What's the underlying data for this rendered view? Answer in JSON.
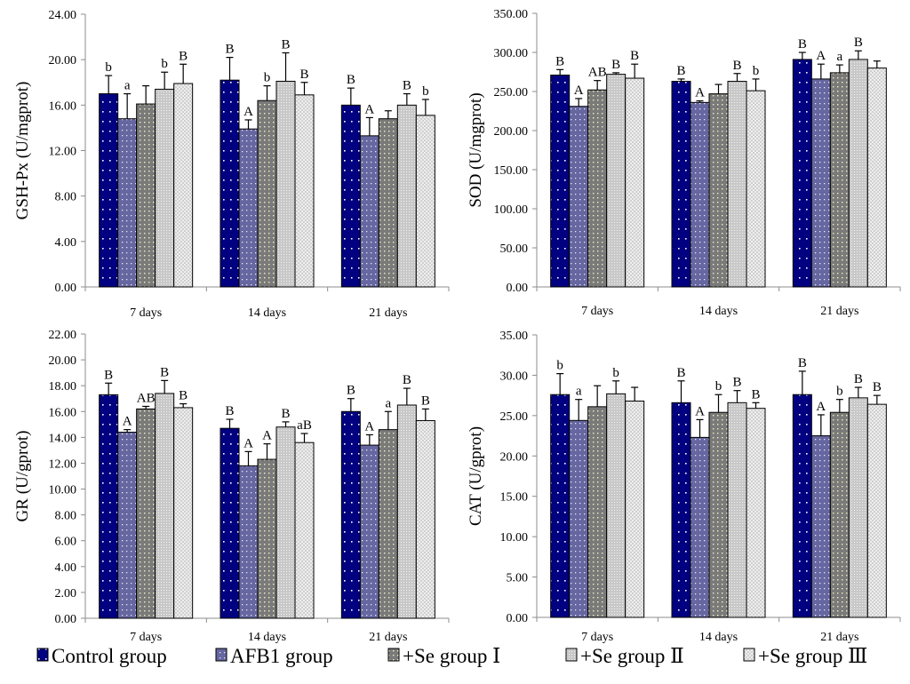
{
  "legend": [
    {
      "label": "Control group",
      "pattern": "control"
    },
    {
      "label": "AFB1 group",
      "pattern": "afb1"
    },
    {
      "label": "+Se group Ⅰ",
      "pattern": "se1"
    },
    {
      "label": "+Se group Ⅱ",
      "pattern": "se2"
    },
    {
      "label": "+Se group Ⅲ",
      "pattern": "se3"
    }
  ],
  "colors": {
    "control": "#000080",
    "afb1": "#6666a0",
    "se1": "#808080",
    "se2": "#d4d4d4",
    "se3": "#ececec",
    "axis": "#808080",
    "bar_edge": "#000000"
  },
  "chart_data": [
    {
      "type": "bar",
      "title": "",
      "xlabel": "",
      "ylabel": "GSH-Px (U/mgprot)",
      "categories": [
        "7 days",
        "14 days",
        "21 days"
      ],
      "ylim": [
        0,
        24
      ],
      "yticks": [
        0,
        4,
        8,
        12,
        16,
        20,
        24
      ],
      "ytick_labels": [
        "0.00",
        "4.00",
        "8.00",
        "12.00",
        "16.00",
        "20.00",
        "24.00"
      ],
      "grid": false,
      "series": [
        {
          "name": "Control group",
          "values": [
            17.0,
            18.2,
            16.0
          ],
          "errors": [
            1.6,
            2.0,
            1.5
          ],
          "sig": [
            "b",
            "B",
            "B"
          ]
        },
        {
          "name": "AFB1 group",
          "values": [
            14.8,
            13.9,
            13.3
          ],
          "errors": [
            2.2,
            0.8,
            1.6
          ],
          "sig": [
            "a",
            "A",
            "A"
          ]
        },
        {
          "name": "+Se group Ⅰ",
          "values": [
            16.1,
            16.4,
            14.8
          ],
          "errors": [
            1.6,
            1.3,
            0.7
          ],
          "sig": [
            "",
            "b",
            ""
          ]
        },
        {
          "name": "+Se group Ⅱ",
          "values": [
            17.4,
            18.1,
            16.0
          ],
          "errors": [
            1.5,
            2.5,
            1.0
          ],
          "sig": [
            "b",
            "B",
            "B"
          ]
        },
        {
          "name": "+Se group Ⅲ",
          "values": [
            17.9,
            16.9,
            15.1
          ],
          "errors": [
            1.7,
            1.1,
            1.4
          ],
          "sig": [
            "B",
            "B",
            "b"
          ]
        }
      ]
    },
    {
      "type": "bar",
      "title": "",
      "xlabel": "",
      "ylabel": "SOD (U/mgprot)",
      "categories": [
        "7 days",
        "14 days",
        "21 days"
      ],
      "ylim": [
        0,
        350
      ],
      "yticks": [
        0,
        50,
        100,
        150,
        200,
        250,
        300,
        350
      ],
      "ytick_labels": [
        "0.00",
        "50.00",
        "100.00",
        "150.00",
        "200.00",
        "250.00",
        "300.00",
        "350.00"
      ],
      "grid": false,
      "series": [
        {
          "name": "Control group",
          "values": [
            271,
            263,
            291
          ],
          "errors": [
            7,
            3,
            9
          ],
          "sig": [
            "B",
            "B",
            "B"
          ]
        },
        {
          "name": "AFB1 group",
          "values": [
            231,
            236,
            266
          ],
          "errors": [
            10,
            2,
            19
          ],
          "sig": [
            "A",
            "A",
            "A"
          ]
        },
        {
          "name": "+Se group Ⅰ",
          "values": [
            252,
            247,
            274
          ],
          "errors": [
            12,
            12,
            10
          ],
          "sig": [
            "AB",
            "",
            "a"
          ]
        },
        {
          "name": "+Se group Ⅱ",
          "values": [
            272,
            263,
            291
          ],
          "errors": [
            2,
            10,
            11
          ],
          "sig": [
            "B",
            "B",
            "B"
          ]
        },
        {
          "name": "+Se group Ⅲ",
          "values": [
            267,
            251,
            280
          ],
          "errors": [
            18,
            15,
            9
          ],
          "sig": [
            "B",
            "b",
            ""
          ]
        }
      ]
    },
    {
      "type": "bar",
      "title": "",
      "xlabel": "",
      "ylabel": "GR (U/gprot)",
      "categories": [
        "7 days",
        "14 days",
        "21 days"
      ],
      "ylim": [
        0,
        22
      ],
      "yticks": [
        0,
        2,
        4,
        6,
        8,
        10,
        12,
        14,
        16,
        18,
        20,
        22
      ],
      "ytick_labels": [
        "0.00",
        "2.00",
        "4.00",
        "6.00",
        "8.00",
        "10.00",
        "12.00",
        "14.00",
        "16.00",
        "18.00",
        "20.00",
        "22.00"
      ],
      "grid": false,
      "series": [
        {
          "name": "Control group",
          "values": [
            17.3,
            14.7,
            16.0
          ],
          "errors": [
            0.9,
            0.7,
            1.0
          ],
          "sig": [
            "B",
            "B",
            "B"
          ]
        },
        {
          "name": "AFB1 group",
          "values": [
            14.4,
            11.8,
            13.4
          ],
          "errors": [
            0.2,
            1.1,
            0.8
          ],
          "sig": [
            "A",
            "A",
            "A"
          ]
        },
        {
          "name": "+Se group Ⅰ",
          "values": [
            16.2,
            12.3,
            14.6
          ],
          "errors": [
            0.2,
            1.2,
            1.4
          ],
          "sig": [
            "AB",
            "A",
            "a"
          ]
        },
        {
          "name": "+Se group Ⅱ",
          "values": [
            17.4,
            14.8,
            16.5
          ],
          "errors": [
            1.0,
            0.4,
            1.3
          ],
          "sig": [
            "B",
            "B",
            "B"
          ]
        },
        {
          "name": "+Se group Ⅲ",
          "values": [
            16.3,
            13.6,
            15.3
          ],
          "errors": [
            0.3,
            0.7,
            0.9
          ],
          "sig": [
            "B",
            "aB",
            "B"
          ]
        }
      ]
    },
    {
      "type": "bar",
      "title": "",
      "xlabel": "",
      "ylabel": "CAT (U/gprot)",
      "categories": [
        "7 days",
        "14 days",
        "21 days"
      ],
      "ylim": [
        0,
        35
      ],
      "yticks": [
        0,
        5,
        10,
        15,
        20,
        25,
        30,
        35
      ],
      "ytick_labels": [
        "0.00",
        "5.00",
        "10.00",
        "15.00",
        "20.00",
        "25.00",
        "30.00",
        "35.00"
      ],
      "grid": false,
      "series": [
        {
          "name": "Control group",
          "values": [
            27.6,
            26.6,
            27.6
          ],
          "errors": [
            2.6,
            2.7,
            2.9
          ],
          "sig": [
            "b",
            "B",
            "B"
          ]
        },
        {
          "name": "AFB1 group",
          "values": [
            24.4,
            22.3,
            22.5
          ],
          "errors": [
            2.6,
            2.2,
            2.6
          ],
          "sig": [
            "a",
            "A",
            "A"
          ]
        },
        {
          "name": "+Se group Ⅰ",
          "values": [
            26.1,
            25.4,
            25.4
          ],
          "errors": [
            2.6,
            2.2,
            1.6
          ],
          "sig": [
            "",
            "b",
            "b"
          ]
        },
        {
          "name": "+Se group Ⅱ",
          "values": [
            27.7,
            26.6,
            27.2
          ],
          "errors": [
            1.6,
            1.5,
            1.3
          ],
          "sig": [
            "b",
            "B",
            "B"
          ]
        },
        {
          "name": "+Se group Ⅲ",
          "values": [
            26.8,
            25.9,
            26.4
          ],
          "errors": [
            1.7,
            0.7,
            1.1
          ],
          "sig": [
            "",
            "B",
            "B"
          ]
        }
      ]
    }
  ]
}
